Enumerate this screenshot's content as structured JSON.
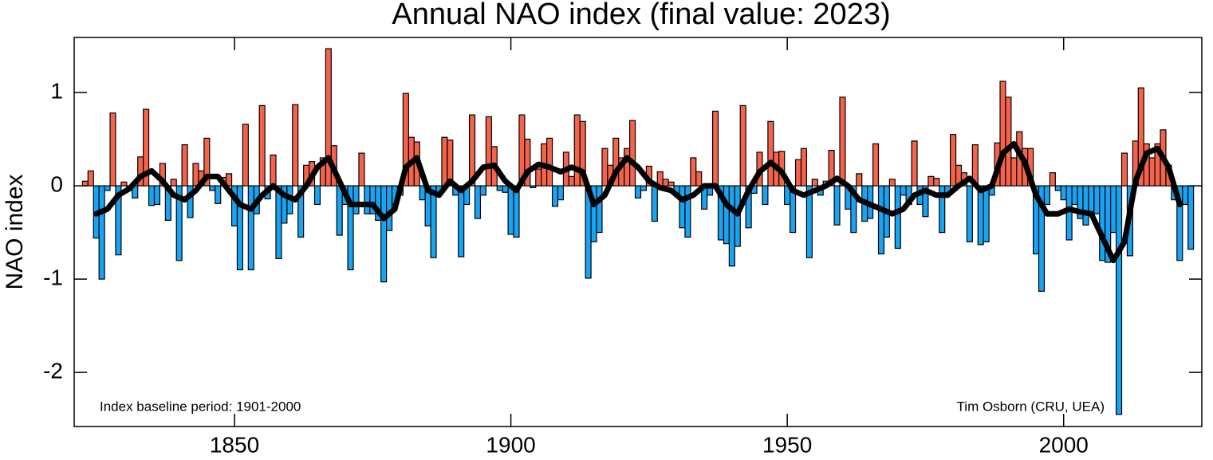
{
  "chart_data": {
    "type": "bar",
    "title": "Annual NAO index (final value: 2023)",
    "ylabel": "NAO index",
    "annotations": [
      "Index baseline period: 1901-2000",
      "Tim Osborn (CRU, UEA)"
    ],
    "xlim": [
      1821,
      2025
    ],
    "ylim": [
      -2.58,
      1.59
    ],
    "xticks": [
      1850,
      1900,
      1950,
      2000
    ],
    "yticks": [
      1,
      0,
      -1,
      -2
    ],
    "colors": {
      "positive": "#f5634b",
      "negative": "#18a4f2",
      "smooth": "#000000"
    },
    "x": [
      1823,
      1824,
      1825,
      1826,
      1827,
      1828,
      1829,
      1830,
      1831,
      1832,
      1833,
      1834,
      1835,
      1836,
      1837,
      1838,
      1839,
      1840,
      1841,
      1842,
      1843,
      1844,
      1845,
      1846,
      1847,
      1848,
      1849,
      1850,
      1851,
      1852,
      1853,
      1854,
      1855,
      1856,
      1857,
      1858,
      1859,
      1860,
      1861,
      1862,
      1863,
      1864,
      1865,
      1866,
      1867,
      1868,
      1869,
      1870,
      1871,
      1872,
      1873,
      1874,
      1875,
      1876,
      1877,
      1878,
      1879,
      1880,
      1881,
      1882,
      1883,
      1884,
      1885,
      1886,
      1887,
      1888,
      1889,
      1890,
      1891,
      1892,
      1893,
      1894,
      1895,
      1896,
      1897,
      1898,
      1899,
      1900,
      1901,
      1902,
      1903,
      1904,
      1905,
      1906,
      1907,
      1908,
      1909,
      1910,
      1911,
      1912,
      1913,
      1914,
      1915,
      1916,
      1917,
      1918,
      1919,
      1920,
      1921,
      1922,
      1923,
      1924,
      1925,
      1926,
      1927,
      1928,
      1929,
      1930,
      1931,
      1932,
      1933,
      1934,
      1935,
      1936,
      1937,
      1938,
      1939,
      1940,
      1941,
      1942,
      1943,
      1944,
      1945,
      1946,
      1947,
      1948,
      1949,
      1950,
      1951,
      1952,
      1953,
      1954,
      1955,
      1956,
      1957,
      1958,
      1959,
      1960,
      1961,
      1962,
      1963,
      1964,
      1965,
      1966,
      1967,
      1968,
      1969,
      1970,
      1971,
      1972,
      1973,
      1974,
      1975,
      1976,
      1977,
      1978,
      1979,
      1980,
      1981,
      1982,
      1983,
      1984,
      1985,
      1986,
      1987,
      1988,
      1989,
      1990,
      1991,
      1992,
      1993,
      1994,
      1995,
      1996,
      1997,
      1998,
      1999,
      2000,
      2001,
      2002,
      2003,
      2004,
      2005,
      2006,
      2007,
      2008,
      2009,
      2010,
      2011,
      2012,
      2013,
      2014,
      2015,
      2016,
      2017,
      2018,
      2019,
      2020,
      2021,
      2022,
      2023
    ],
    "values": [
      0.05,
      0.16,
      -0.56,
      -1.0,
      -0.05,
      0.78,
      -0.74,
      0.04,
      -0.05,
      -0.13,
      0.31,
      0.82,
      -0.21,
      -0.2,
      0.24,
      -0.37,
      0.07,
      -0.8,
      0.44,
      -0.34,
      0.24,
      0.16,
      0.51,
      -0.05,
      -0.19,
      0.09,
      0.13,
      -0.43,
      -0.9,
      0.66,
      -0.9,
      -0.3,
      0.86,
      -0.14,
      0.33,
      -0.78,
      -0.4,
      -0.3,
      0.87,
      -0.55,
      0.22,
      0.26,
      -0.2,
      0.3,
      1.47,
      0.43,
      -0.53,
      -0.2,
      -0.9,
      -0.3,
      0.35,
      -0.3,
      -0.3,
      -0.37,
      -1.03,
      -0.48,
      -0.2,
      -0.1,
      0.99,
      0.52,
      0.47,
      -0.15,
      -0.43,
      -0.77,
      -0.1,
      0.52,
      0.49,
      -0.1,
      -0.76,
      -0.2,
      0.76,
      -0.35,
      -0.1,
      0.74,
      0.42,
      -0.05,
      -0.07,
      -0.52,
      -0.55,
      0.76,
      0.5,
      -0.02,
      0.18,
      0.45,
      0.51,
      -0.22,
      -0.15,
      0.36,
      0.1,
      0.76,
      0.69,
      -0.99,
      -0.6,
      -0.5,
      0.4,
      0.22,
      0.51,
      0.3,
      0.4,
      0.7,
      -0.13,
      -0.05,
      0.21,
      -0.38,
      0.15,
      0.07,
      0.04,
      -0.1,
      -0.45,
      -0.55,
      0.3,
      0.15,
      -0.25,
      -0.1,
      0.8,
      -0.58,
      -0.62,
      -0.86,
      -0.65,
      0.86,
      -0.45,
      -0.08,
      0.36,
      -0.2,
      0.69,
      0.36,
      0.37,
      -0.2,
      -0.5,
      0.28,
      0.4,
      -0.77,
      0.07,
      -0.1,
      0.05,
      0.38,
      -0.42,
      0.95,
      -0.25,
      -0.5,
      0.13,
      -0.38,
      -0.35,
      0.45,
      -0.73,
      -0.55,
      0.07,
      -0.67,
      -0.1,
      -0.2,
      0.48,
      -0.2,
      -0.33,
      0.1,
      0.08,
      -0.5,
      -0.08,
      0.55,
      0.22,
      0.14,
      -0.6,
      0.44,
      -0.63,
      -0.6,
      -0.1,
      0.46,
      1.12,
      0.95,
      0.3,
      0.58,
      0.4,
      0.4,
      -0.73,
      -1.13,
      -0.2,
      0.14,
      -0.05,
      -0.15,
      -0.58,
      -0.2,
      -0.35,
      -0.42,
      -0.3,
      -0.3,
      -0.8,
      -0.82,
      -0.5,
      -2.45,
      0.35,
      -0.75,
      0.48,
      1.05,
      0.45,
      0.3,
      0.45,
      0.6,
      0.22,
      -0.15,
      -0.8,
      -0.2,
      -0.68
    ],
    "smooth": {
      "x": [
        1825,
        1827,
        1829,
        1831,
        1833,
        1835,
        1837,
        1839,
        1841,
        1843,
        1845,
        1847,
        1849,
        1851,
        1853,
        1855,
        1857,
        1859,
        1861,
        1863,
        1865,
        1867,
        1869,
        1871,
        1873,
        1875,
        1877,
        1879,
        1881,
        1883,
        1885,
        1887,
        1889,
        1891,
        1893,
        1895,
        1897,
        1899,
        1901,
        1903,
        1905,
        1907,
        1909,
        1911,
        1913,
        1915,
        1917,
        1919,
        1921,
        1923,
        1925,
        1927,
        1929,
        1931,
        1933,
        1935,
        1937,
        1939,
        1941,
        1943,
        1945,
        1947,
        1949,
        1951,
        1953,
        1955,
        1957,
        1959,
        1961,
        1963,
        1965,
        1967,
        1969,
        1971,
        1973,
        1975,
        1977,
        1979,
        1981,
        1983,
        1985,
        1987,
        1989,
        1991,
        1993,
        1995,
        1997,
        1999,
        2001,
        2003,
        2005,
        2007,
        2009,
        2011,
        2013,
        2015,
        2017,
        2019,
        2021
      ],
      "values": [
        -0.3,
        -0.25,
        -0.1,
        -0.03,
        0.1,
        0.16,
        0.05,
        -0.1,
        -0.15,
        -0.05,
        0.1,
        0.1,
        -0.05,
        -0.2,
        -0.25,
        -0.1,
        0.0,
        -0.1,
        -0.15,
        0.0,
        0.2,
        0.3,
        0.05,
        -0.2,
        -0.2,
        -0.2,
        -0.35,
        -0.25,
        0.2,
        0.3,
        -0.05,
        -0.1,
        0.05,
        -0.05,
        0.05,
        0.2,
        0.22,
        0.05,
        -0.05,
        0.15,
        0.23,
        0.2,
        0.15,
        0.2,
        0.15,
        -0.2,
        -0.1,
        0.15,
        0.3,
        0.2,
        0.05,
        -0.02,
        -0.05,
        -0.15,
        -0.1,
        0.0,
        0.0,
        -0.2,
        -0.3,
        -0.05,
        0.15,
        0.25,
        0.15,
        -0.05,
        -0.1,
        -0.05,
        0.0,
        0.08,
        0.0,
        -0.15,
        -0.2,
        -0.25,
        -0.3,
        -0.25,
        -0.1,
        -0.05,
        -0.1,
        -0.1,
        0.0,
        0.08,
        -0.05,
        0.0,
        0.35,
        0.45,
        0.25,
        -0.1,
        -0.3,
        -0.3,
        -0.25,
        -0.28,
        -0.3,
        -0.55,
        -0.8,
        -0.6,
        0.05,
        0.35,
        0.4,
        0.2,
        -0.2
      ]
    }
  }
}
